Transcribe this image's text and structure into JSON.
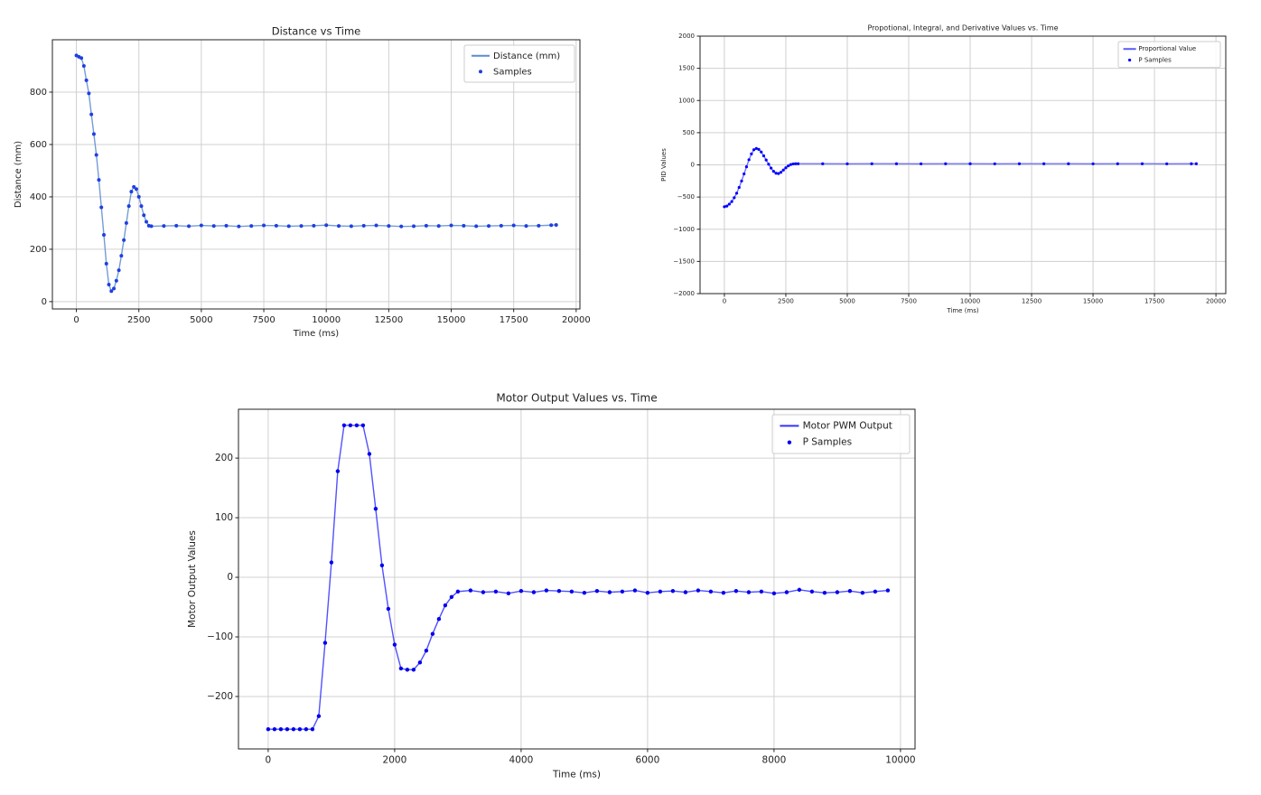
{
  "chart_data": [
    {
      "type": "line",
      "title": "Distance vs Time",
      "xlabel": "Time (ms)",
      "ylabel": "Distance (mm)",
      "x": [
        0,
        100,
        200,
        300,
        400,
        500,
        600,
        700,
        800,
        900,
        1000,
        1100,
        1200,
        1300,
        1400,
        1500,
        1600,
        1700,
        1800,
        1900,
        2000,
        2100,
        2200,
        2300,
        2400,
        2500,
        2600,
        2700,
        2800,
        2900,
        3000,
        3500,
        4000,
        4500,
        5000,
        5500,
        6000,
        6500,
        7000,
        7500,
        8000,
        8500,
        9000,
        9500,
        10000,
        10500,
        11000,
        11500,
        12000,
        12500,
        13000,
        13500,
        14000,
        14500,
        15000,
        15500,
        16000,
        16500,
        17000,
        17500,
        18000,
        18500,
        19000,
        19200
      ],
      "series": [
        {
          "name": "Distance (mm)",
          "style": "line",
          "color": "#5b8bd0",
          "values": [
            940,
            935,
            930,
            900,
            845,
            795,
            715,
            640,
            560,
            465,
            360,
            255,
            145,
            65,
            40,
            50,
            80,
            120,
            175,
            235,
            300,
            365,
            420,
            438,
            430,
            400,
            365,
            330,
            305,
            290,
            288,
            289,
            290,
            288,
            291,
            289,
            290,
            287,
            289,
            291,
            290,
            288,
            289,
            290,
            292,
            289,
            288,
            290,
            291,
            289,
            287,
            288,
            290,
            289,
            291,
            290,
            288,
            289,
            290,
            291,
            289,
            290,
            292,
            293
          ]
        },
        {
          "name": "Samples",
          "style": "markers",
          "color": "#1f3fe0",
          "values": [
            940,
            935,
            930,
            900,
            845,
            795,
            715,
            640,
            560,
            465,
            360,
            255,
            145,
            65,
            40,
            50,
            80,
            120,
            175,
            235,
            300,
            365,
            420,
            438,
            430,
            400,
            365,
            330,
            305,
            290,
            288,
            289,
            290,
            288,
            291,
            289,
            290,
            287,
            289,
            291,
            290,
            288,
            289,
            290,
            292,
            289,
            288,
            290,
            291,
            289,
            287,
            288,
            290,
            289,
            291,
            290,
            288,
            289,
            290,
            291,
            289,
            290,
            292,
            293
          ]
        }
      ],
      "xlim": [
        -960,
        20150
      ],
      "xticks": [
        0,
        2500,
        5000,
        7500,
        10000,
        12500,
        15000,
        17500,
        20000
      ],
      "ylim": [
        -28,
        1000
      ],
      "yticks": [
        0,
        200,
        400,
        600,
        800
      ],
      "grid": true,
      "legend": "upper right"
    },
    {
      "type": "line",
      "title": "Propotional, Integral, and Derivative Values vs. Time",
      "xlabel": "Time (ms)",
      "ylabel": "PID Values",
      "x": [
        0,
        100,
        200,
        300,
        400,
        500,
        600,
        700,
        800,
        900,
        1000,
        1100,
        1200,
        1300,
        1400,
        1500,
        1600,
        1700,
        1800,
        1900,
        2000,
        2100,
        2200,
        2300,
        2400,
        2500,
        2600,
        2700,
        2800,
        2900,
        3000,
        4000,
        5000,
        6000,
        7000,
        8000,
        9000,
        10000,
        11000,
        12000,
        13000,
        14000,
        15000,
        16000,
        17000,
        18000,
        19000,
        19200
      ],
      "series": [
        {
          "name": "Proportional Value",
          "style": "line",
          "color": "#5a5aff",
          "values": [
            -650,
            -640,
            -610,
            -570,
            -510,
            -440,
            -350,
            -250,
            -140,
            -30,
            80,
            170,
            235,
            255,
            240,
            200,
            140,
            75,
            10,
            -50,
            -100,
            -130,
            -135,
            -115,
            -80,
            -45,
            -15,
            5,
            15,
            18,
            18,
            18,
            17,
            18,
            18,
            17,
            18,
            18,
            17,
            18,
            18,
            18,
            17,
            18,
            18,
            17,
            18,
            18
          ]
        },
        {
          "name": "P Samples",
          "style": "markers",
          "color": "#0000ff",
          "values": [
            -650,
            -640,
            -610,
            -570,
            -510,
            -440,
            -350,
            -250,
            -140,
            -30,
            80,
            170,
            235,
            255,
            240,
            200,
            140,
            75,
            10,
            -50,
            -100,
            -130,
            -135,
            -115,
            -80,
            -45,
            -15,
            5,
            15,
            18,
            18,
            18,
            17,
            18,
            18,
            17,
            18,
            18,
            17,
            18,
            18,
            18,
            17,
            18,
            18,
            17,
            18,
            18
          ]
        }
      ],
      "xlim": [
        -990,
        20400
      ],
      "xticks": [
        0,
        2500,
        5000,
        7500,
        10000,
        12500,
        15000,
        17500,
        20000
      ],
      "ylim": [
        -2000,
        2000
      ],
      "yticks": [
        {
          "value": -2000,
          "label": "−2000"
        },
        {
          "value": -1500,
          "label": "−1500"
        },
        {
          "value": -1000,
          "label": "−1000"
        },
        {
          "value": -500,
          "label": "−500"
        },
        0,
        500,
        1000,
        1500,
        2000
      ],
      "grid": true,
      "legend": "upper right"
    },
    {
      "type": "line",
      "title": "Motor Output Values vs. Time",
      "xlabel": "Time (ms)",
      "ylabel": "Motor Output Values",
      "x": [
        0,
        100,
        200,
        300,
        400,
        500,
        600,
        700,
        800,
        900,
        1000,
        1100,
        1200,
        1300,
        1400,
        1500,
        1600,
        1700,
        1800,
        1900,
        2000,
        2100,
        2200,
        2300,
        2400,
        2500,
        2600,
        2700,
        2800,
        2900,
        3000,
        3200,
        3400,
        3600,
        3800,
        4000,
        4200,
        4400,
        4600,
        4800,
        5000,
        5200,
        5400,
        5600,
        5800,
        6000,
        6200,
        6400,
        6600,
        6800,
        7000,
        7200,
        7400,
        7600,
        7800,
        8000,
        8200,
        8400,
        8600,
        8800,
        9000,
        9200,
        9400,
        9600,
        9800
      ],
      "series": [
        {
          "name": "Motor PWM Output",
          "style": "line",
          "color": "#3333ff",
          "values": [
            -255,
            -255,
            -255,
            -255,
            -255,
            -255,
            -255,
            -255,
            -233,
            -110,
            25,
            178,
            255,
            255,
            255,
            255,
            207,
            115,
            20,
            -53,
            -113,
            -153,
            -155,
            -155,
            -143,
            -123,
            -95,
            -70,
            -47,
            -33,
            -24,
            -22,
            -25,
            -24,
            -27,
            -23,
            -25,
            -22,
            -23,
            -24,
            -26,
            -23,
            -25,
            -24,
            -22,
            -26,
            -24,
            -23,
            -25,
            -22,
            -24,
            -26,
            -23,
            -25,
            -24,
            -27,
            -25,
            -21,
            -24,
            -26,
            -25,
            -23,
            -26,
            -24,
            -22
          ]
        },
        {
          "name": "P Samples",
          "style": "markers",
          "color": "#0000ee",
          "values": [
            -255,
            -255,
            -255,
            -255,
            -255,
            -255,
            -255,
            -255,
            -233,
            -110,
            25,
            178,
            255,
            255,
            255,
            255,
            207,
            115,
            20,
            -53,
            -113,
            -153,
            -155,
            -155,
            -143,
            -123,
            -95,
            -70,
            -47,
            -33,
            -24,
            -22,
            -25,
            -24,
            -27,
            -23,
            -25,
            -22,
            -23,
            -24,
            -26,
            -23,
            -25,
            -24,
            -22,
            -26,
            -24,
            -23,
            -25,
            -22,
            -24,
            -26,
            -23,
            -25,
            -24,
            -27,
            -25,
            -21,
            -24,
            -26,
            -25,
            -23,
            -26,
            -24,
            -22
          ]
        }
      ],
      "xlim": [
        -470,
        10230
      ],
      "xticks": [
        0,
        2000,
        4000,
        6000,
        8000,
        10000
      ],
      "ylim": [
        -288,
        282
      ],
      "yticks": [
        {
          "value": -200,
          "label": "−200"
        },
        {
          "value": -100,
          "label": "−100"
        },
        0,
        100,
        200
      ],
      "grid": true,
      "legend": "upper right"
    }
  ]
}
